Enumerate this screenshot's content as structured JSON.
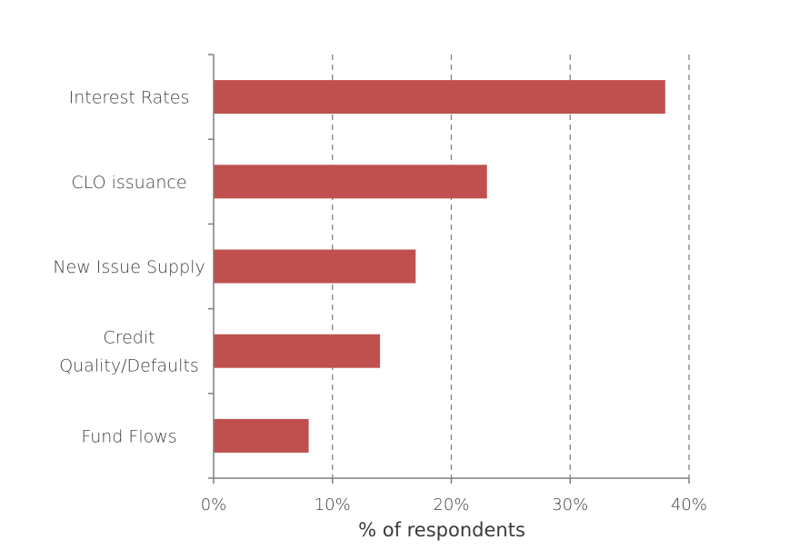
{
  "chart_data": {
    "type": "bar",
    "orientation": "horizontal",
    "categories": [
      "Interest Rates",
      "CLO issuance",
      "New Issue Supply",
      "Credit Quality/Defaults",
      "Fund Flows"
    ],
    "category_lines": [
      [
        "Interest Rates"
      ],
      [
        "CLO issuance"
      ],
      [
        "New Issue Supply"
      ],
      [
        "Credit",
        "Quality/Defaults"
      ],
      [
        "Fund Flows"
      ]
    ],
    "values": [
      38,
      23,
      17,
      14,
      8
    ],
    "xlim": [
      0,
      40
    ],
    "xticks": [
      0,
      10,
      20,
      30,
      40
    ],
    "xtick_labels": [
      "0%",
      "10%",
      "20%",
      "30%",
      "40%"
    ],
    "xlabel": "% of respondents",
    "ylabel": "",
    "title": "",
    "grid": "vertical-dashed",
    "legend": "none",
    "bar_color": "#c0504d",
    "axis_color": "#7f7f7f",
    "grid_color": "#7f7f7f"
  }
}
